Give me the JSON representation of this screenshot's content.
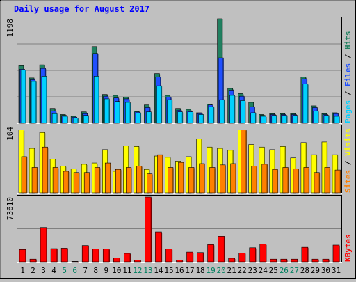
{
  "chart_data": {
    "type": "bar",
    "title": "Daily usage for August 2017",
    "categories": [
      "1",
      "2",
      "3",
      "4",
      "5",
      "6",
      "7",
      "8",
      "9",
      "10",
      "11",
      "12",
      "13",
      "14",
      "15",
      "16",
      "17",
      "18",
      "19",
      "20",
      "21",
      "22",
      "23",
      "24",
      "25",
      "26",
      "27",
      "28",
      "29",
      "30",
      "31"
    ],
    "weekend_days": [
      "5",
      "6",
      "12",
      "13",
      "19",
      "20",
      "26",
      "27"
    ],
    "panels": [
      {
        "name": "hits-files-pages",
        "ymax_label": "1198",
        "ylim": [
          0,
          1198
        ],
        "legend": [
          {
            "text": "Pages",
            "color": "#00d0ff"
          },
          {
            "text": " / ",
            "color": "#000000"
          },
          {
            "text": "Files",
            "color": "#2050ff"
          },
          {
            "text": " / ",
            "color": "#000000"
          },
          {
            "text": "Hits",
            "color": "#208060"
          }
        ],
        "series": [
          {
            "name": "Hits",
            "color": "#208060",
            "values": [
              660,
              520,
              670,
              170,
              100,
              80,
              130,
              880,
              330,
              320,
              300,
              140,
              210,
              570,
              320,
              170,
              160,
              120,
              220,
              1198,
              400,
              340,
              240,
              100,
              110,
              110,
              110,
              530,
              200,
              110,
              120
            ]
          },
          {
            "name": "Files",
            "color": "#2050ff",
            "values": [
              620,
              500,
              630,
              140,
              90,
              70,
              110,
              800,
              310,
              290,
              280,
              130,
              180,
              530,
              300,
              150,
              140,
              110,
              210,
              750,
              380,
              310,
              190,
              90,
              100,
              100,
              100,
              510,
              180,
              100,
              110
            ]
          },
          {
            "name": "Pages",
            "color": "#00d0ff",
            "values": [
              610,
              480,
              540,
              110,
              80,
              60,
              90,
              540,
              280,
              250,
              240,
              120,
              130,
              430,
              270,
              130,
              130,
              100,
              190,
              270,
              320,
              260,
              120,
              80,
              90,
              90,
              90,
              450,
              140,
              90,
              80
            ]
          }
        ]
      },
      {
        "name": "visits-sites",
        "ymax_label": "104",
        "ylim": [
          0,
          104
        ],
        "legend": [
          {
            "text": "Sites",
            "color": "#ff8000"
          },
          {
            "text": " / ",
            "color": "#000000"
          },
          {
            "text": "Visits",
            "color": "#ffff00"
          }
        ],
        "series": [
          {
            "name": "Visits",
            "color": "#ffff00",
            "values": [
              99,
              70,
              95,
              53,
              42,
              38,
              45,
              47,
              68,
              34,
              74,
              73,
              37,
              58,
              56,
              50,
              57,
              85,
              72,
              70,
              67,
              99,
              76,
              72,
              68,
              73,
              55,
              79,
              60,
              80,
              60
            ]
          },
          {
            "name": "Sites",
            "color": "#ff8000",
            "values": [
              57,
              40,
              72,
              40,
              34,
              32,
              32,
              40,
              47,
              37,
              40,
              42,
              30,
              60,
              40,
              48,
              40,
              46,
              40,
              44,
              46,
              99,
              42,
              45,
              37,
              40,
              38,
              40,
              32,
              40,
              36
            ]
          }
        ]
      },
      {
        "name": "kbytes",
        "ymax_label": "73610",
        "ylim": [
          0,
          73610
        ],
        "legend": [
          {
            "text": "KBytes",
            "color": "#ff0000"
          }
        ],
        "series": [
          {
            "name": "KBytes",
            "color": "#ff0000",
            "values": [
              14000,
              3000,
              39000,
              15000,
              15500,
              500,
              18500,
              14500,
              14500,
              4500,
              9500,
              2000,
              73610,
              34000,
              14500,
              2000,
              11000,
              10500,
              19500,
              29000,
              4000,
              10000,
              16000,
              20000,
              3000,
              3000,
              3000,
              16500,
              3000,
              3000,
              19000
            ]
          }
        ]
      }
    ]
  }
}
